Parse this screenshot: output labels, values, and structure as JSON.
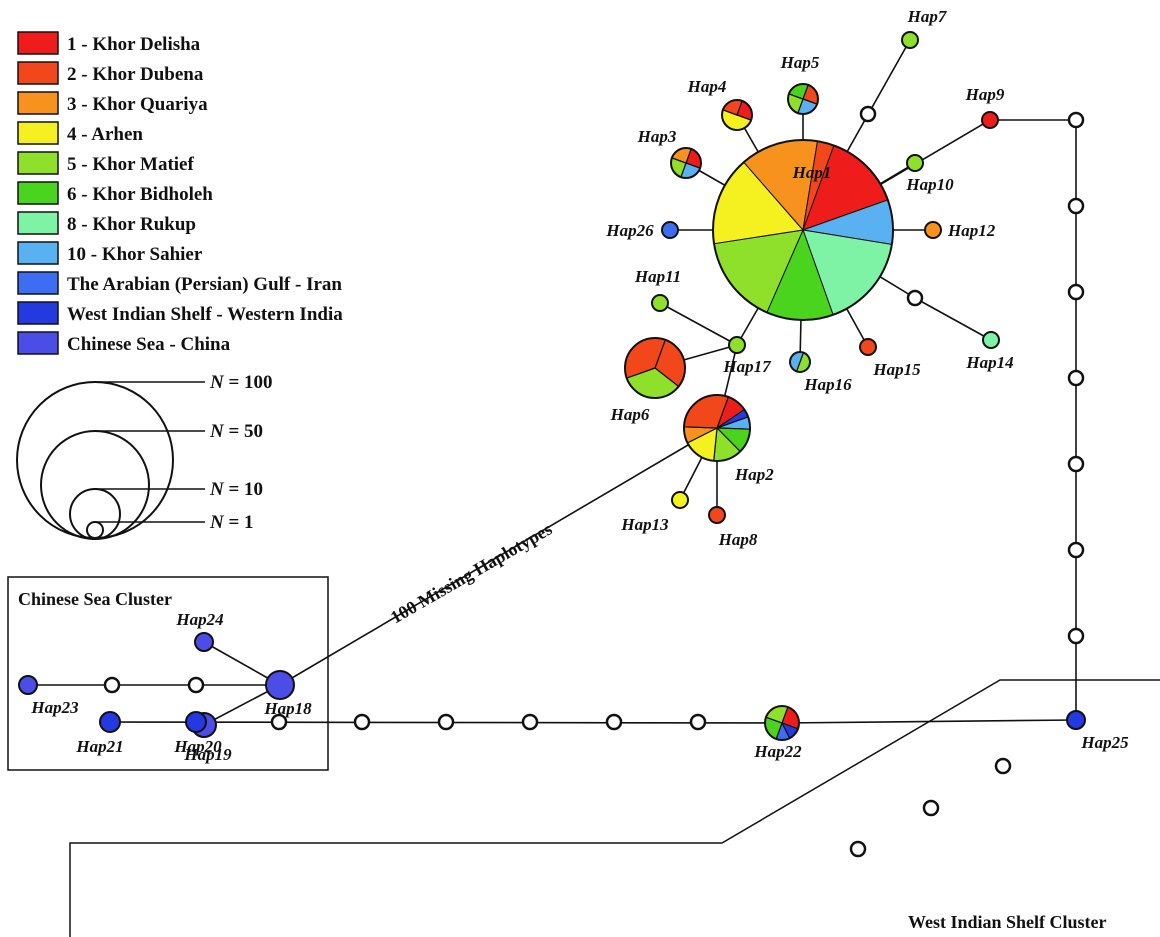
{
  "legend": {
    "items": [
      {
        "label": "1 - Khor Delisha",
        "color": "#ef1c1c"
      },
      {
        "label": "2 - Khor Dubena",
        "color": "#f2471a"
      },
      {
        "label": "3 - Khor Quariya",
        "color": "#f7921e"
      },
      {
        "label": "4 - Arhen",
        "color": "#f5f01f"
      },
      {
        "label": "5 - Khor Matief",
        "color": "#8ee02a"
      },
      {
        "label": "6 - Khor Bidholeh",
        "color": "#4ad41e"
      },
      {
        "label": "8 - Khor Rukup",
        "color": "#7ef3a6"
      },
      {
        "label": "10 - Khor Sahier",
        "color": "#5ab1f2"
      },
      {
        "label": "The Arabian (Persian) Gulf - Iran",
        "color": "#3d6ef2"
      },
      {
        "label": "West Indian Shelf - Western India",
        "color": "#2439e0"
      },
      {
        "label": "Chinese Sea - China",
        "color": "#4a4ee6"
      }
    ]
  },
  "scale": {
    "items": [
      {
        "var": "N",
        "text": " = 100"
      },
      {
        "var": "N",
        "text": " = 50"
      },
      {
        "var": "N",
        "text": " = 10"
      },
      {
        "var": "N",
        "text": " = 1"
      }
    ]
  },
  "clusters": {
    "chinese": "Chinese Sea Cluster",
    "west_indian": "West Indian Shelf Cluster"
  },
  "missing_label": "100 Missing Haplotypes",
  "haplotypes": [
    {
      "id": "Hap1",
      "label": "Hap1"
    },
    {
      "id": "Hap2",
      "label": "Hap2"
    },
    {
      "id": "Hap3",
      "label": "Hap3"
    },
    {
      "id": "Hap4",
      "label": "Hap4"
    },
    {
      "id": "Hap5",
      "label": "Hap5"
    },
    {
      "id": "Hap6",
      "label": "Hap6"
    },
    {
      "id": "Hap7",
      "label": "Hap7"
    },
    {
      "id": "Hap8",
      "label": "Hap8"
    },
    {
      "id": "Hap9",
      "label": "Hap9"
    },
    {
      "id": "Hap10",
      "label": "Hap10"
    },
    {
      "id": "Hap11",
      "label": "Hap11"
    },
    {
      "id": "Hap12",
      "label": "Hap12"
    },
    {
      "id": "Hap13",
      "label": "Hap13"
    },
    {
      "id": "Hap14",
      "label": "Hap14"
    },
    {
      "id": "Hap15",
      "label": "Hap15"
    },
    {
      "id": "Hap16",
      "label": "Hap16"
    },
    {
      "id": "Hap17",
      "label": "Hap17"
    },
    {
      "id": "Hap18",
      "label": "Hap18"
    },
    {
      "id": "Hap19",
      "label": "Hap19"
    },
    {
      "id": "Hap20",
      "label": "Hap20"
    },
    {
      "id": "Hap21",
      "label": "Hap21"
    },
    {
      "id": "Hap22",
      "label": "Hap22"
    },
    {
      "id": "Hap23",
      "label": "Hap23"
    },
    {
      "id": "Hap24",
      "label": "Hap24"
    },
    {
      "id": "Hap25",
      "label": "Hap25"
    },
    {
      "id": "Hap26",
      "label": "Hap26"
    }
  ]
}
